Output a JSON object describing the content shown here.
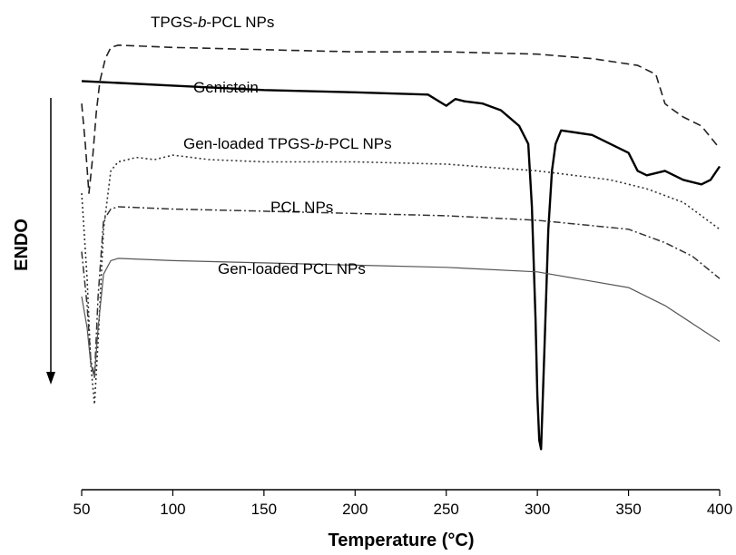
{
  "chart_data": {
    "type": "line",
    "title": "",
    "xlabel": "Temperature (°C)",
    "ylabel": "ENDO",
    "xlim": [
      50,
      400
    ],
    "ylim": [
      0,
      100
    ],
    "x_ticks": [
      50,
      100,
      150,
      200,
      250,
      300,
      350,
      400
    ],
    "grid": false,
    "legend": "none (curves labeled inline)",
    "series": [
      {
        "name_parts": [
          "TPGS-",
          "b",
          "-PCL NPs"
        ],
        "style": "dashed",
        "color": "#222222",
        "x": [
          50,
          52,
          54,
          56,
          58,
          60,
          63,
          66,
          70,
          100,
          150,
          200,
          250,
          300,
          330,
          355,
          365,
          370,
          373,
          380,
          390,
          400
        ],
        "y": [
          83,
          74,
          63,
          71,
          81,
          88,
          93,
          95.5,
          96,
          95.5,
          95,
          94.5,
          94.5,
          94,
          93,
          91.5,
          89.5,
          83,
          82,
          80,
          78,
          73
        ]
      },
      {
        "name": "Genistein",
        "style": "solid-thick",
        "color": "#000000",
        "x": [
          50,
          100,
          150,
          200,
          240,
          250,
          255,
          260,
          270,
          280,
          290,
          295,
          297,
          299,
          300,
          301,
          302,
          304,
          306,
          308,
          310,
          313,
          330,
          350,
          355,
          360,
          370,
          380,
          390,
          395,
          400
        ],
        "y": [
          88,
          87,
          86,
          85.5,
          85,
          82.5,
          84,
          83.5,
          83,
          81.5,
          78,
          74,
          60,
          35,
          18,
          8,
          6,
          30,
          55,
          68,
          74,
          77,
          76,
          72,
          68,
          67,
          68,
          66,
          65,
          66,
          69
        ]
      },
      {
        "name_parts": [
          "Gen-loaded TPGS-",
          "b",
          "-PCL NPs"
        ],
        "style": "dotted",
        "color": "#333333",
        "x": [
          50,
          53,
          55,
          57,
          59,
          62,
          66,
          70,
          80,
          90,
          100,
          120,
          150,
          200,
          250,
          300,
          340,
          360,
          380,
          390,
          400
        ],
        "y": [
          63,
          44,
          25,
          16,
          30,
          55,
          68,
          70,
          71,
          70.5,
          71.5,
          70.5,
          70,
          70,
          69.5,
          68,
          66,
          64,
          61,
          58,
          55
        ]
      },
      {
        "name": "PCL NPs",
        "style": "dash-dot",
        "color": "#333333",
        "x": [
          50,
          53,
          55,
          57,
          59,
          62,
          66,
          70,
          100,
          150,
          200,
          250,
          300,
          350,
          370,
          385,
          400
        ],
        "y": [
          50,
          38,
          26,
          22,
          40,
          57,
          59.5,
          60,
          59.5,
          59,
          58.5,
          58,
          57,
          55,
          52,
          49,
          44
        ]
      },
      {
        "name": "Gen-loaded PCL NPs",
        "style": "solid-thin",
        "color": "#555555",
        "x": [
          50,
          53,
          55,
          57,
          59,
          62,
          66,
          70,
          100,
          150,
          200,
          250,
          300,
          350,
          370,
          385,
          400
        ],
        "y": [
          40,
          33,
          25,
          22,
          33,
          45,
          48,
          48.5,
          48,
          47.5,
          47,
          46.5,
          45.5,
          42,
          38,
          34,
          30
        ]
      }
    ]
  }
}
